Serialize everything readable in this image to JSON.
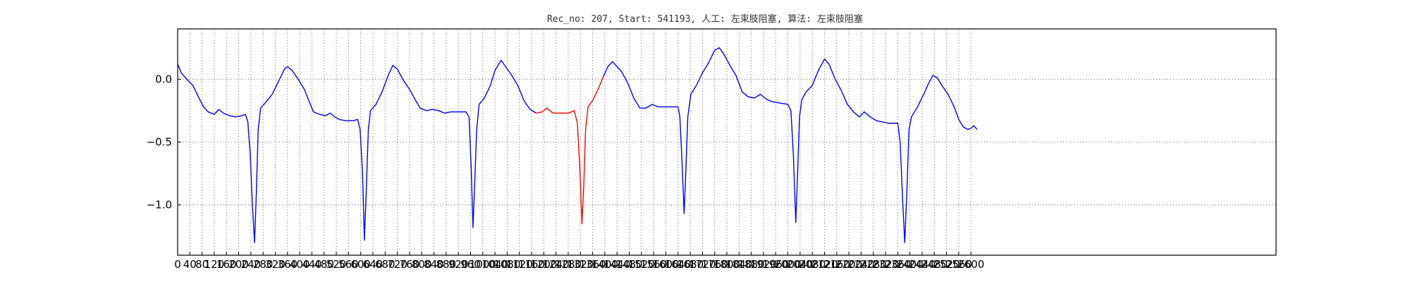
{
  "chart_data": {
    "type": "line",
    "title": "Rec_no: 207, Start: 541193, 人工: 左束肢阻塞, 算法: 左束肢阻塞",
    "xlabel": "",
    "ylabel": "",
    "xlim": [
      0,
      3600
    ],
    "ylim": [
      -1.4,
      0.4
    ],
    "grid": true,
    "x_ticks": [
      0,
      40,
      80,
      120,
      160,
      200,
      240,
      280,
      320,
      360,
      400,
      440,
      480,
      520,
      560,
      600,
      640,
      680,
      720,
      760,
      800,
      840,
      880,
      920,
      960,
      1000,
      1040,
      1080,
      1120,
      1160,
      1200,
      1240,
      1280,
      1320,
      1360,
      1400,
      1440,
      1480,
      1520,
      1560,
      1600,
      1640,
      1680,
      1720,
      1760,
      1800,
      1840,
      1880,
      1920,
      1960,
      2000,
      2040,
      2080,
      2120,
      2160,
      2200,
      2240,
      2280,
      2320,
      2360,
      2400,
      2440,
      2480,
      2520,
      2560,
      2600
    ],
    "y_ticks": [
      0.0,
      -0.5,
      -1.0
    ],
    "y_tick_labels": [
      "0.0",
      "−0.5",
      "−1.0"
    ],
    "colors": {
      "normal": "#0000ff",
      "highlight": "#ff0000"
    },
    "highlight_range": [
      1195,
      1395
    ],
    "series": [
      {
        "points": [
          [
            0,
            0.12
          ],
          [
            12,
            0.05
          ],
          [
            30,
            0.0
          ],
          [
            50,
            -0.05
          ],
          [
            70,
            -0.15
          ],
          [
            85,
            -0.22
          ],
          [
            100,
            -0.26
          ],
          [
            120,
            -0.28
          ],
          [
            135,
            -0.24
          ],
          [
            150,
            -0.27
          ],
          [
            170,
            -0.29
          ],
          [
            190,
            -0.3
          ],
          [
            210,
            -0.29
          ],
          [
            222,
            -0.28
          ],
          [
            230,
            -0.34
          ],
          [
            238,
            -0.6
          ],
          [
            245,
            -1.0
          ],
          [
            252,
            -1.3
          ],
          [
            258,
            -0.9
          ],
          [
            264,
            -0.4
          ],
          [
            272,
            -0.23
          ],
          [
            290,
            -0.18
          ],
          [
            310,
            -0.12
          ],
          [
            330,
            -0.02
          ],
          [
            350,
            0.08
          ],
          [
            360,
            0.1
          ],
          [
            375,
            0.07
          ],
          [
            395,
            0.0
          ],
          [
            415,
            -0.08
          ],
          [
            430,
            -0.17
          ],
          [
            445,
            -0.26
          ],
          [
            465,
            -0.28
          ],
          [
            485,
            -0.29
          ],
          [
            500,
            -0.27
          ],
          [
            515,
            -0.3
          ],
          [
            530,
            -0.32
          ],
          [
            550,
            -0.33
          ],
          [
            575,
            -0.33
          ],
          [
            590,
            -0.32
          ],
          [
            598,
            -0.4
          ],
          [
            606,
            -0.75
          ],
          [
            612,
            -1.28
          ],
          [
            618,
            -0.9
          ],
          [
            625,
            -0.4
          ],
          [
            632,
            -0.25
          ],
          [
            650,
            -0.2
          ],
          [
            670,
            -0.1
          ],
          [
            690,
            0.03
          ],
          [
            705,
            0.11
          ],
          [
            720,
            0.08
          ],
          [
            740,
            -0.01
          ],
          [
            760,
            -0.08
          ],
          [
            780,
            -0.17
          ],
          [
            795,
            -0.23
          ],
          [
            815,
            -0.25
          ],
          [
            835,
            -0.24
          ],
          [
            855,
            -0.25
          ],
          [
            875,
            -0.27
          ],
          [
            895,
            -0.26
          ],
          [
            945,
            -0.26
          ],
          [
            955,
            -0.3
          ],
          [
            962,
            -0.7
          ],
          [
            968,
            -1.18
          ],
          [
            974,
            -0.8
          ],
          [
            980,
            -0.4
          ],
          [
            988,
            -0.2
          ],
          [
            1005,
            -0.15
          ],
          [
            1025,
            -0.05
          ],
          [
            1040,
            0.07
          ],
          [
            1060,
            0.15
          ],
          [
            1075,
            0.1
          ],
          [
            1095,
            0.03
          ],
          [
            1115,
            -0.05
          ],
          [
            1135,
            -0.17
          ],
          [
            1155,
            -0.24
          ],
          [
            1175,
            -0.27
          ],
          [
            1195,
            -0.26
          ],
          [
            1210,
            -0.23
          ],
          [
            1230,
            -0.27
          ],
          [
            1260,
            -0.27
          ],
          [
            1280,
            -0.27
          ],
          [
            1300,
            -0.25
          ],
          [
            1310,
            -0.35
          ],
          [
            1318,
            -0.7
          ],
          [
            1325,
            -1.15
          ],
          [
            1331,
            -0.85
          ],
          [
            1337,
            -0.4
          ],
          [
            1345,
            -0.22
          ],
          [
            1360,
            -0.17
          ],
          [
            1380,
            -0.07
          ],
          [
            1395,
            0.02
          ],
          [
            1410,
            0.1
          ],
          [
            1425,
            0.14
          ],
          [
            1440,
            0.1
          ],
          [
            1455,
            0.06
          ],
          [
            1475,
            -0.03
          ],
          [
            1495,
            -0.15
          ],
          [
            1515,
            -0.23
          ],
          [
            1535,
            -0.23
          ],
          [
            1555,
            -0.2
          ],
          [
            1575,
            -0.22
          ],
          [
            1600,
            -0.22
          ],
          [
            1625,
            -0.22
          ],
          [
            1640,
            -0.22
          ],
          [
            1646,
            -0.3
          ],
          [
            1652,
            -0.6
          ],
          [
            1660,
            -1.07
          ],
          [
            1666,
            -0.7
          ],
          [
            1672,
            -0.3
          ],
          [
            1682,
            -0.12
          ],
          [
            1700,
            -0.05
          ],
          [
            1720,
            0.05
          ],
          [
            1740,
            0.13
          ],
          [
            1760,
            0.23
          ],
          [
            1775,
            0.25
          ],
          [
            1790,
            0.2
          ],
          [
            1810,
            0.11
          ],
          [
            1830,
            0.03
          ],
          [
            1850,
            -0.1
          ],
          [
            1870,
            -0.14
          ],
          [
            1890,
            -0.15
          ],
          [
            1910,
            -0.12
          ],
          [
            1930,
            -0.16
          ],
          [
            1950,
            -0.18
          ],
          [
            1975,
            -0.19
          ],
          [
            2000,
            -0.2
          ],
          [
            2010,
            -0.25
          ],
          [
            2018,
            -0.6
          ],
          [
            2026,
            -1.14
          ],
          [
            2032,
            -0.75
          ],
          [
            2038,
            -0.3
          ],
          [
            2046,
            -0.16
          ],
          [
            2060,
            -0.1
          ],
          [
            2080,
            -0.05
          ],
          [
            2100,
            0.07
          ],
          [
            2120,
            0.16
          ],
          [
            2135,
            0.12
          ],
          [
            2155,
            0.0
          ],
          [
            2175,
            -0.09
          ],
          [
            2195,
            -0.2
          ],
          [
            2215,
            -0.26
          ],
          [
            2235,
            -0.3
          ],
          [
            2250,
            -0.26
          ],
          [
            2270,
            -0.3
          ],
          [
            2290,
            -0.33
          ],
          [
            2310,
            -0.34
          ],
          [
            2330,
            -0.35
          ],
          [
            2360,
            -0.35
          ],
          [
            2368,
            -0.5
          ],
          [
            2376,
            -0.95
          ],
          [
            2383,
            -1.3
          ],
          [
            2390,
            -0.9
          ],
          [
            2397,
            -0.4
          ],
          [
            2405,
            -0.3
          ],
          [
            2425,
            -0.22
          ],
          [
            2445,
            -0.12
          ],
          [
            2460,
            -0.04
          ],
          [
            2475,
            0.03
          ],
          [
            2490,
            0.01
          ],
          [
            2505,
            -0.05
          ],
          [
            2525,
            -0.12
          ],
          [
            2545,
            -0.22
          ],
          [
            2560,
            -0.32
          ],
          [
            2575,
            -0.38
          ],
          [
            2590,
            -0.4
          ],
          [
            2600,
            -0.39
          ],
          [
            2610,
            -0.37
          ],
          [
            2620,
            -0.4
          ]
        ]
      }
    ]
  }
}
